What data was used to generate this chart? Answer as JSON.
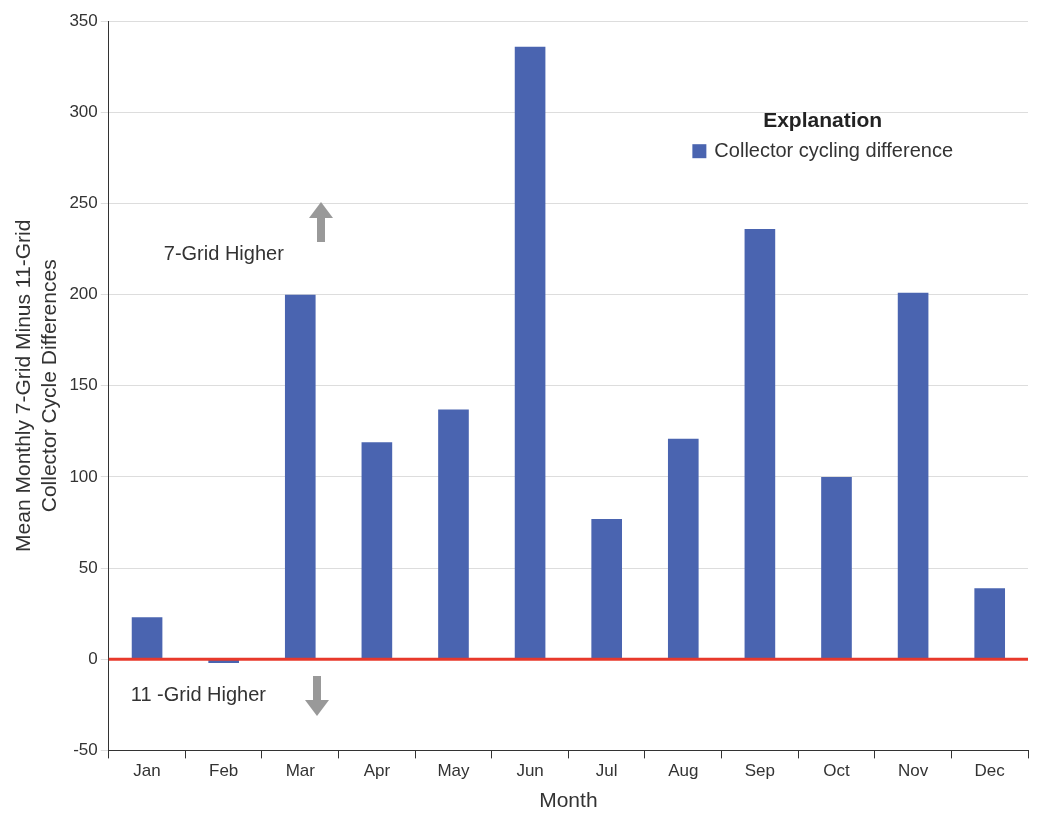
{
  "chart_data": {
    "type": "bar",
    "xlabel": "Month",
    "ylabel": "Mean Monthly 7-Grid Minus 11-Grid\nCollector Cycle Differences",
    "legend_title": "Explanation",
    "categories": [
      "Jan",
      "Feb",
      "Mar",
      "Apr",
      "May",
      "Jun",
      "Jul",
      "Aug",
      "Sep",
      "Oct",
      "Nov",
      "Dec"
    ],
    "series": [
      {
        "name": "Collector cycling difference",
        "color": "#4a64b0",
        "values": [
          23,
          -2,
          200,
          119,
          137,
          336,
          77,
          121,
          236,
          100,
          201,
          39
        ]
      }
    ],
    "ylim": [
      -50,
      350
    ],
    "yticks": [
      -50,
      0,
      50,
      100,
      150,
      200,
      250,
      300,
      350
    ],
    "grid": "y",
    "legend": "top right",
    "ref_lines": [
      {
        "axis": "y",
        "value": 0,
        "color": "#e8392b"
      }
    ],
    "annotations": [
      "7-Grid Higher",
      "11 -Grid Higher"
    ]
  }
}
